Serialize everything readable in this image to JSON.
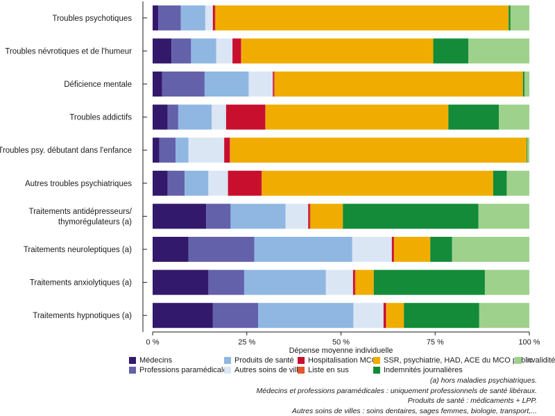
{
  "chart_data": {
    "type": "bar",
    "orientation": "horizontal",
    "stacked": true,
    "xlabel": "Dépense moyenne individuelle",
    "x_ticks": [
      "0 %",
      "25 %",
      "50 %",
      "75 %",
      "100 %"
    ],
    "xlim": [
      0,
      100
    ],
    "grid": false,
    "legend_position": "bottom",
    "categories": [
      "Troubles psychotiques",
      "Troubles névrotiques et de l'humeur",
      "Déficience mentale",
      "Troubles addictifs",
      "Troubles psy. débutant dans l'enfance",
      "Autres troubles psychiatriques",
      "Traitements antidépresseurs/ thymorégulateurs (a)",
      "Traitements neuroleptiques (a)",
      "Traitements anxiolytiques (a)",
      "Traitements hypnotiques (a)"
    ],
    "series": [
      {
        "name": "Médecins",
        "color": "#33196b",
        "values": [
          1.5,
          5,
          2.5,
          4,
          1.8,
          4,
          14.2,
          9.5,
          14.8,
          16
        ]
      },
      {
        "name": "Professions paramédicales",
        "color": "#6461ab",
        "values": [
          6,
          5.2,
          11.3,
          2.8,
          4.3,
          4.5,
          6.5,
          17.5,
          9.5,
          12
        ]
      },
      {
        "name": "Produits de santé",
        "color": "#8fb7e2",
        "values": [
          6.5,
          6.7,
          11.7,
          8.9,
          3.4,
          6.3,
          14.6,
          26,
          21.7,
          25.3
        ]
      },
      {
        "name": "Autres soins de ville",
        "color": "#dbe6f5",
        "values": [
          2,
          4.3,
          6.4,
          3.8,
          9.5,
          5.2,
          6,
          10.5,
          7.2,
          8
        ]
      },
      {
        "name": "Hospitalisation MCO",
        "color": "#c8102e",
        "values": [
          0.5,
          2.2,
          0.3,
          10.4,
          1.5,
          8.9,
          0.4,
          0.5,
          0.5,
          0.6
        ]
      },
      {
        "name": "Liste en sus",
        "color": "#e4572e",
        "values": [
          0.2,
          0.2,
          0.2,
          0.1,
          0.1,
          0.1,
          0.2,
          0.1,
          0.2,
          0.2
        ]
      },
      {
        "name": "SSR, psychiatrie, HAD, ACE du MCO public",
        "color": "#f0ad00",
        "values": [
          77.9,
          50.9,
          65.9,
          48.5,
          78.7,
          61.4,
          8.6,
          9.6,
          4.8,
          4.6
        ]
      },
      {
        "name": "Indemnités journalières",
        "color": "#138b38",
        "values": [
          0.5,
          9.3,
          0.4,
          13.4,
          0.2,
          3.6,
          36,
          5.8,
          29.5,
          20
        ]
      },
      {
        "name": "Invalidité",
        "color": "#9ed18c",
        "values": [
          5,
          16.2,
          1.3,
          8.1,
          0.5,
          6,
          13.5,
          20.5,
          11.8,
          13.3
        ]
      }
    ]
  },
  "legend": [
    {
      "label": "Médecins",
      "color": "#33196b"
    },
    {
      "label": "Professions paramédicales",
      "color": "#6461ab"
    },
    {
      "label": "Produits de santé",
      "color": "#8fb7e2"
    },
    {
      "label": "Autres soins de ville",
      "color": "#dbe6f5"
    },
    {
      "label": "Hospitalisation MCO",
      "color": "#c8102e"
    },
    {
      "label": "Liste en sus",
      "color": "#e4572e"
    },
    {
      "label": "SSR, psychiatrie, HAD, ACE du MCO public",
      "color": "#f0ad00"
    },
    {
      "label": "Indemnités journalières",
      "color": "#138b38"
    },
    {
      "label": "Invalidité",
      "color": "#9ed18c"
    }
  ],
  "notes": {
    "line1": "(a) hors maladies psychiatriques.",
    "line2": "Médecins et professions paramédicales : uniquement professionnels de santé libéraux.",
    "line3": "Produits de santé : médicaments + LPP.",
    "line4": "Autres soins de villes : soins dentaires, sages femmes, biologie, transport,..."
  }
}
